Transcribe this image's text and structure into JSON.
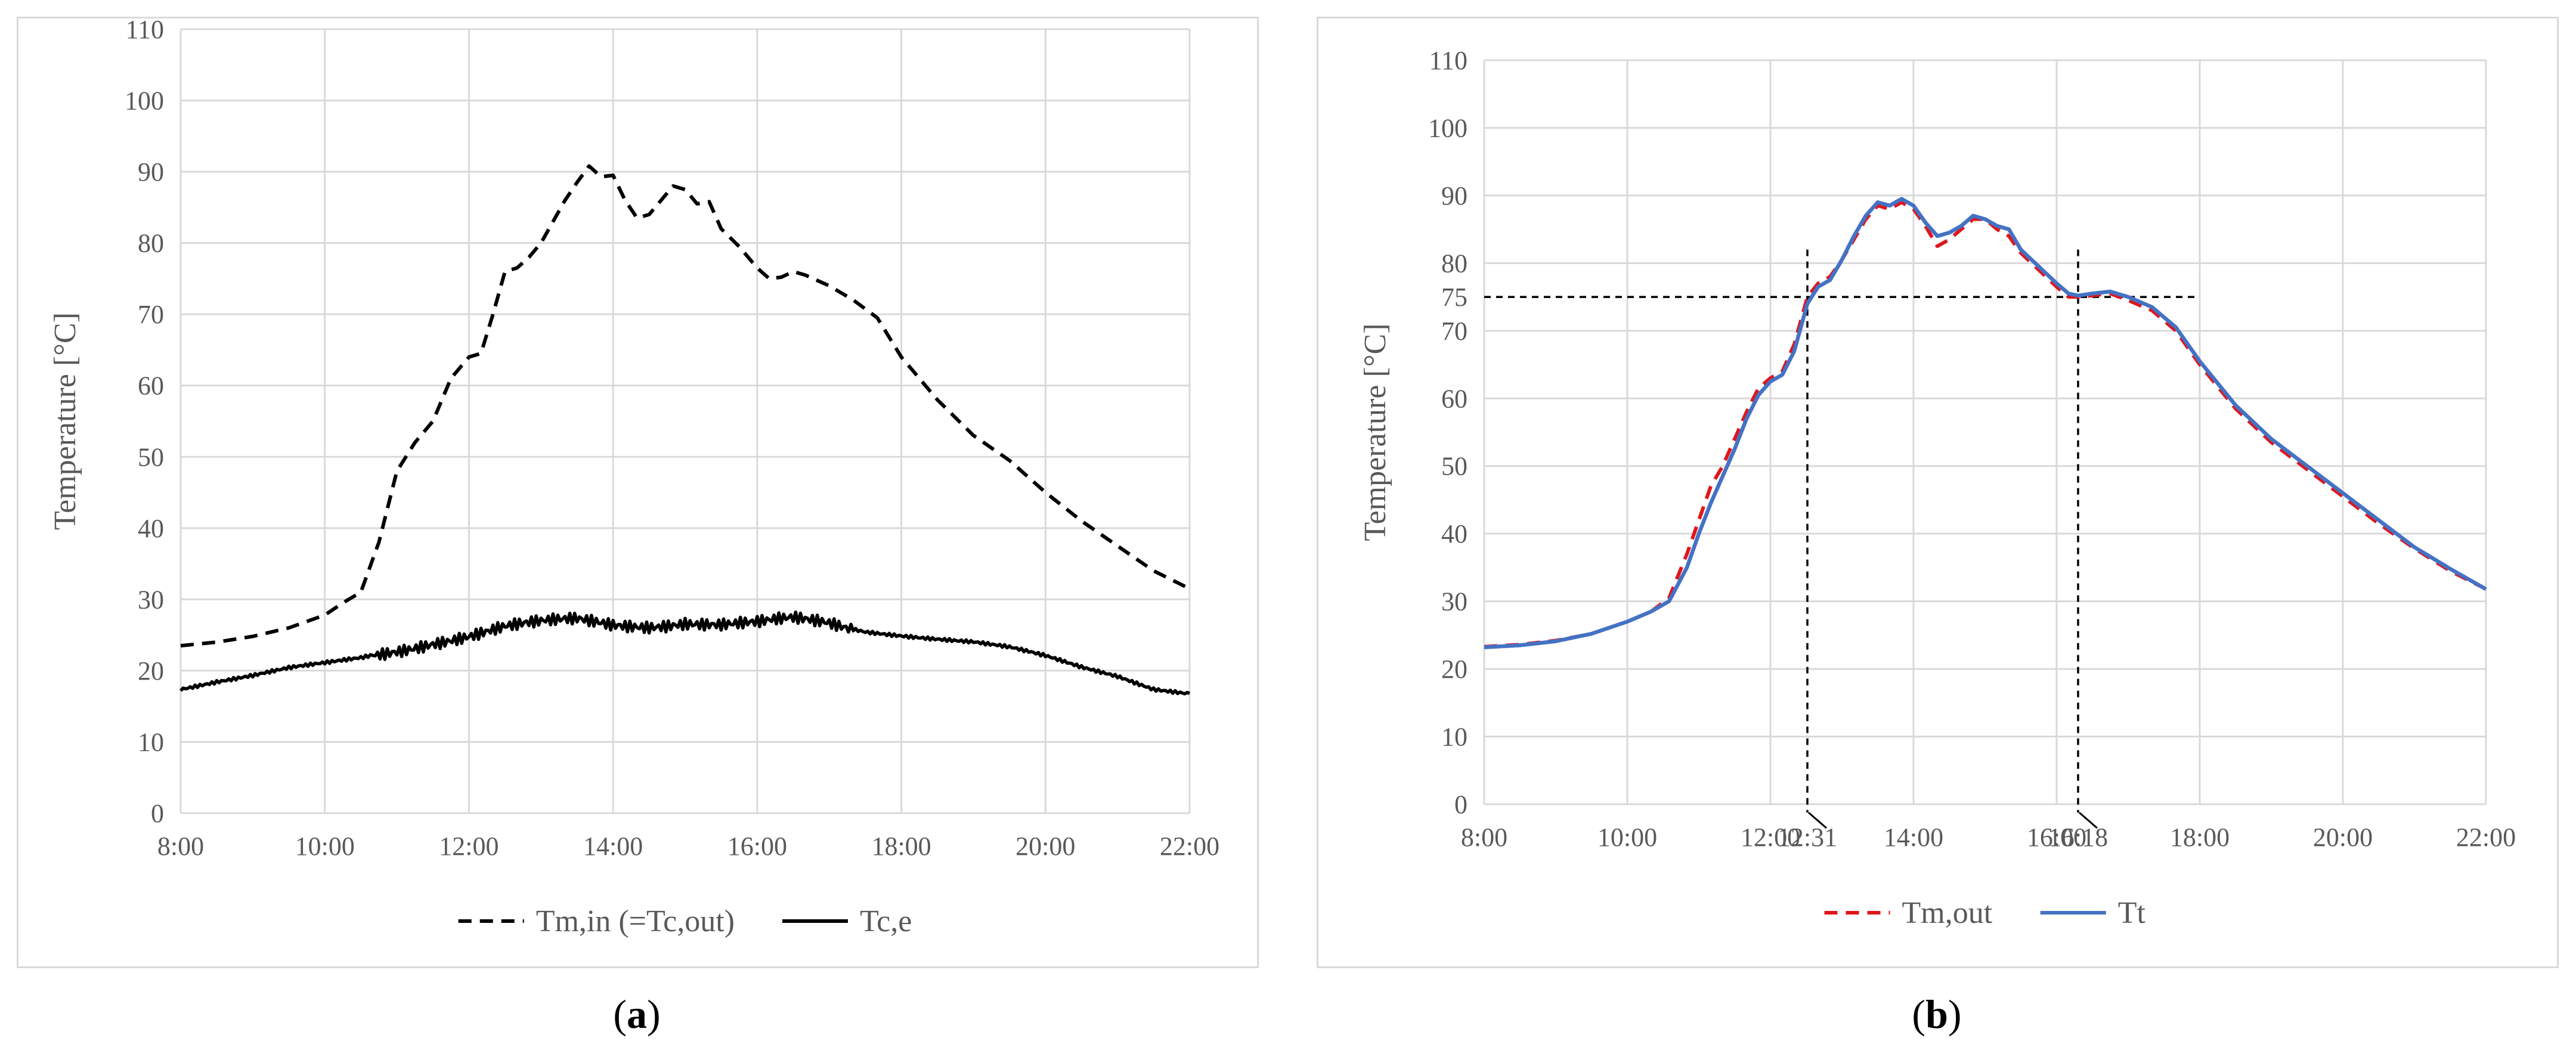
{
  "chart_data": [
    {
      "type": "line",
      "panel": "(a)",
      "ylabel": "Temperature [°C]",
      "xlabel": "",
      "ylim": [
        0,
        110
      ],
      "yticks": [
        "0",
        "10",
        "20",
        "30",
        "40",
        "50",
        "60",
        "70",
        "80",
        "90",
        "100",
        "110"
      ],
      "xlim": [
        "8:00",
        "22:00"
      ],
      "xticks": [
        "8:00",
        "10:00",
        "12:00",
        "14:00",
        "16:00",
        "18:00",
        "20:00",
        "22:00"
      ],
      "grid": true,
      "legend_position": "bottom",
      "series": [
        {
          "name": "Tm,in (=Tc,out)",
          "style": "dashed",
          "color": "#000000",
          "points": [
            [
              "8:00",
              23.5
            ],
            [
              "8:30",
              24
            ],
            [
              "9:00",
              24.8
            ],
            [
              "9:30",
              26
            ],
            [
              "10:00",
              27.8
            ],
            [
              "10:15",
              29.5
            ],
            [
              "10:30",
              31
            ],
            [
              "10:45",
              38
            ],
            [
              "11:00",
              48
            ],
            [
              "11:15",
              52
            ],
            [
              "11:30",
              55
            ],
            [
              "11:45",
              61
            ],
            [
              "12:00",
              64
            ],
            [
              "12:10",
              64.5
            ],
            [
              "12:20",
              70
            ],
            [
              "12:30",
              76
            ],
            [
              "12:40",
              76.5
            ],
            [
              "12:50",
              78
            ],
            [
              "13:00",
              80
            ],
            [
              "13:10",
              83
            ],
            [
              "13:20",
              86
            ],
            [
              "13:30",
              88.5
            ],
            [
              "13:40",
              90.8
            ],
            [
              "13:50",
              89.3
            ],
            [
              "14:00",
              89.5
            ],
            [
              "14:10",
              86
            ],
            [
              "14:20",
              83.5
            ],
            [
              "14:30",
              84
            ],
            [
              "14:40",
              86
            ],
            [
              "14:50",
              88
            ],
            [
              "15:00",
              87.5
            ],
            [
              "15:10",
              85.5
            ],
            [
              "15:20",
              85.8
            ],
            [
              "15:30",
              82
            ],
            [
              "15:45",
              79.5
            ],
            [
              "16:00",
              76.5
            ],
            [
              "16:10",
              75
            ],
            [
              "16:20",
              75.2
            ],
            [
              "16:30",
              76
            ],
            [
              "16:40",
              75.5
            ],
            [
              "17:00",
              74
            ],
            [
              "17:20",
              72
            ],
            [
              "17:40",
              69.5
            ],
            [
              "18:00",
              64
            ],
            [
              "18:30",
              58
            ],
            [
              "19:00",
              53
            ],
            [
              "19:30",
              49.5
            ],
            [
              "20:00",
              45
            ],
            [
              "20:30",
              41
            ],
            [
              "21:00",
              37.5
            ],
            [
              "21:30",
              34
            ],
            [
              "22:00",
              31.5
            ]
          ]
        },
        {
          "name": "Tc,e",
          "style": "solid-noisy",
          "color": "#000000",
          "points": [
            [
              "8:00",
              17.5
            ],
            [
              "8:30",
              18.5
            ],
            [
              "9:00",
              19.3
            ],
            [
              "9:30",
              20.3
            ],
            [
              "10:00",
              21
            ],
            [
              "10:30",
              21.8
            ],
            [
              "11:00",
              23
            ],
            [
              "11:30",
              24.2
            ],
            [
              "12:00",
              25
            ],
            [
              "12:30",
              26
            ],
            [
              "13:00",
              26.5
            ],
            [
              "13:30",
              27
            ],
            [
              "14:00",
              26.5
            ],
            [
              "14:30",
              26.5
            ],
            [
              "15:00",
              27
            ],
            [
              "15:30",
              26.5
            ],
            [
              "16:00",
              26.5
            ],
            [
              "16:30",
              27
            ],
            [
              "17:00",
              26.5
            ],
            [
              "17:30",
              25.5
            ],
            [
              "18:00",
              25
            ],
            [
              "18:30",
              24.5
            ],
            [
              "19:00",
              24
            ],
            [
              "19:30",
              23.2
            ],
            [
              "20:00",
              22
            ],
            [
              "20:30",
              20.5
            ],
            [
              "21:00",
              19.3
            ],
            [
              "21:30",
              17.5
            ],
            [
              "22:00",
              16.8
            ]
          ]
        }
      ]
    },
    {
      "type": "line",
      "panel": "(b)",
      "ylabel": "Temperature [°C]",
      "xlabel": "",
      "ylim": [
        0,
        110
      ],
      "yticks": [
        "0",
        "10",
        "20",
        "30",
        "40",
        "50",
        "60",
        "70",
        "75",
        "80",
        "90",
        "100",
        "110"
      ],
      "xlim": [
        "8:00",
        "22:00"
      ],
      "xticks": [
        "8:00",
        "10:00",
        "12:00",
        "12:31",
        "14:00",
        "16:00",
        "16:18",
        "18:00",
        "20:00",
        "22:00"
      ],
      "grid": true,
      "legend_position": "bottom",
      "reference_lines": {
        "horizontal": {
          "y": 75,
          "x_from": "8:00",
          "x_to": "18:00"
        },
        "vertical": [
          {
            "x": "12:31",
            "label": "12:31"
          },
          {
            "x": "16:18",
            "label": "16:18"
          }
        ]
      },
      "series": [
        {
          "name": "Tm,out",
          "style": "dashed",
          "color": "#e0161b",
          "points": [
            [
              "8:00",
              23.3
            ],
            [
              "8:30",
              23.6
            ],
            [
              "9:00",
              24.2
            ],
            [
              "9:30",
              25.2
            ],
            [
              "10:00",
              27
            ],
            [
              "10:20",
              28.5
            ],
            [
              "10:35",
              30.5
            ],
            [
              "10:50",
              37
            ],
            [
              "11:00",
              42
            ],
            [
              "11:10",
              47
            ],
            [
              "11:20",
              50
            ],
            [
              "11:30",
              54
            ],
            [
              "11:40",
              58
            ],
            [
              "11:50",
              61.5
            ],
            [
              "12:00",
              63
            ],
            [
              "12:10",
              64
            ],
            [
              "12:20",
              68
            ],
            [
              "12:31",
              75
            ],
            [
              "12:40",
              77
            ],
            [
              "12:50",
              78
            ],
            [
              "13:00",
              80.5
            ],
            [
              "13:10",
              83.5
            ],
            [
              "13:20",
              86.5
            ],
            [
              "13:30",
              88.5
            ],
            [
              "13:40",
              88
            ],
            [
              "13:50",
              89
            ],
            [
              "14:00",
              88
            ],
            [
              "14:10",
              85.5
            ],
            [
              "14:20",
              82.5
            ],
            [
              "14:30",
              83.5
            ],
            [
              "14:40",
              85
            ],
            [
              "14:50",
              86.5
            ],
            [
              "15:00",
              86.5
            ],
            [
              "15:10",
              85
            ],
            [
              "15:20",
              84
            ],
            [
              "15:30",
              81.5
            ],
            [
              "15:45",
              79
            ],
            [
              "16:00",
              76.5
            ],
            [
              "16:10",
              75
            ],
            [
              "16:18",
              75
            ],
            [
              "16:30",
              75.2
            ],
            [
              "16:45",
              75.5
            ],
            [
              "17:00",
              74.5
            ],
            [
              "17:20",
              73
            ],
            [
              "17:40",
              70
            ],
            [
              "18:00",
              65
            ],
            [
              "18:30",
              58.5
            ],
            [
              "19:00",
              53.5
            ],
            [
              "19:30",
              49.5
            ],
            [
              "20:00",
              45.5
            ],
            [
              "20:30",
              41.5
            ],
            [
              "21:00",
              37.8
            ],
            [
              "21:30",
              34.5
            ],
            [
              "22:00",
              31.8
            ]
          ]
        },
        {
          "name": "Tt",
          "style": "solid",
          "color": "#4472c4",
          "points": [
            [
              "8:00",
              23.2
            ],
            [
              "8:30",
              23.5
            ],
            [
              "9:00",
              24.1
            ],
            [
              "9:30",
              25.2
            ],
            [
              "10:00",
              27
            ],
            [
              "10:20",
              28.5
            ],
            [
              "10:35",
              30
            ],
            [
              "10:50",
              35
            ],
            [
              "11:00",
              40
            ],
            [
              "11:10",
              44.5
            ],
            [
              "11:20",
              48.5
            ],
            [
              "11:30",
              52.5
            ],
            [
              "11:40",
              57
            ],
            [
              "11:50",
              60.5
            ],
            [
              "12:00",
              62.5
            ],
            [
              "12:10",
              63.5
            ],
            [
              "12:20",
              67
            ],
            [
              "12:31",
              74
            ],
            [
              "12:40",
              76.5
            ],
            [
              "12:50",
              77.5
            ],
            [
              "13:00",
              80.5
            ],
            [
              "13:10",
              84
            ],
            [
              "13:20",
              87
            ],
            [
              "13:30",
              89
            ],
            [
              "13:40",
              88.5
            ],
            [
              "13:50",
              89.5
            ],
            [
              "14:00",
              88.5
            ],
            [
              "14:10",
              86
            ],
            [
              "14:20",
              84
            ],
            [
              "14:30",
              84.5
            ],
            [
              "14:40",
              85.5
            ],
            [
              "14:50",
              87
            ],
            [
              "15:00",
              86.5
            ],
            [
              "15:10",
              85.5
            ],
            [
              "15:20",
              85
            ],
            [
              "15:30",
              82
            ],
            [
              "15:45",
              79.5
            ],
            [
              "16:00",
              77
            ],
            [
              "16:10",
              75.5
            ],
            [
              "16:18",
              75.2
            ],
            [
              "16:30",
              75.5
            ],
            [
              "16:45",
              75.8
            ],
            [
              "17:00",
              75
            ],
            [
              "17:20",
              73.5
            ],
            [
              "17:40",
              70.5
            ],
            [
              "18:00",
              65.5
            ],
            [
              "18:30",
              59
            ],
            [
              "19:00",
              54
            ],
            [
              "19:30",
              50
            ],
            [
              "20:00",
              46
            ],
            [
              "20:30",
              42
            ],
            [
              "21:00",
              38
            ],
            [
              "21:30",
              34.8
            ],
            [
              "22:00",
              31.8
            ]
          ]
        }
      ]
    }
  ],
  "captions": [
    {
      "open": "(",
      "letter": "a",
      "close": ")"
    },
    {
      "open": "(",
      "letter": "b",
      "close": ")"
    }
  ]
}
